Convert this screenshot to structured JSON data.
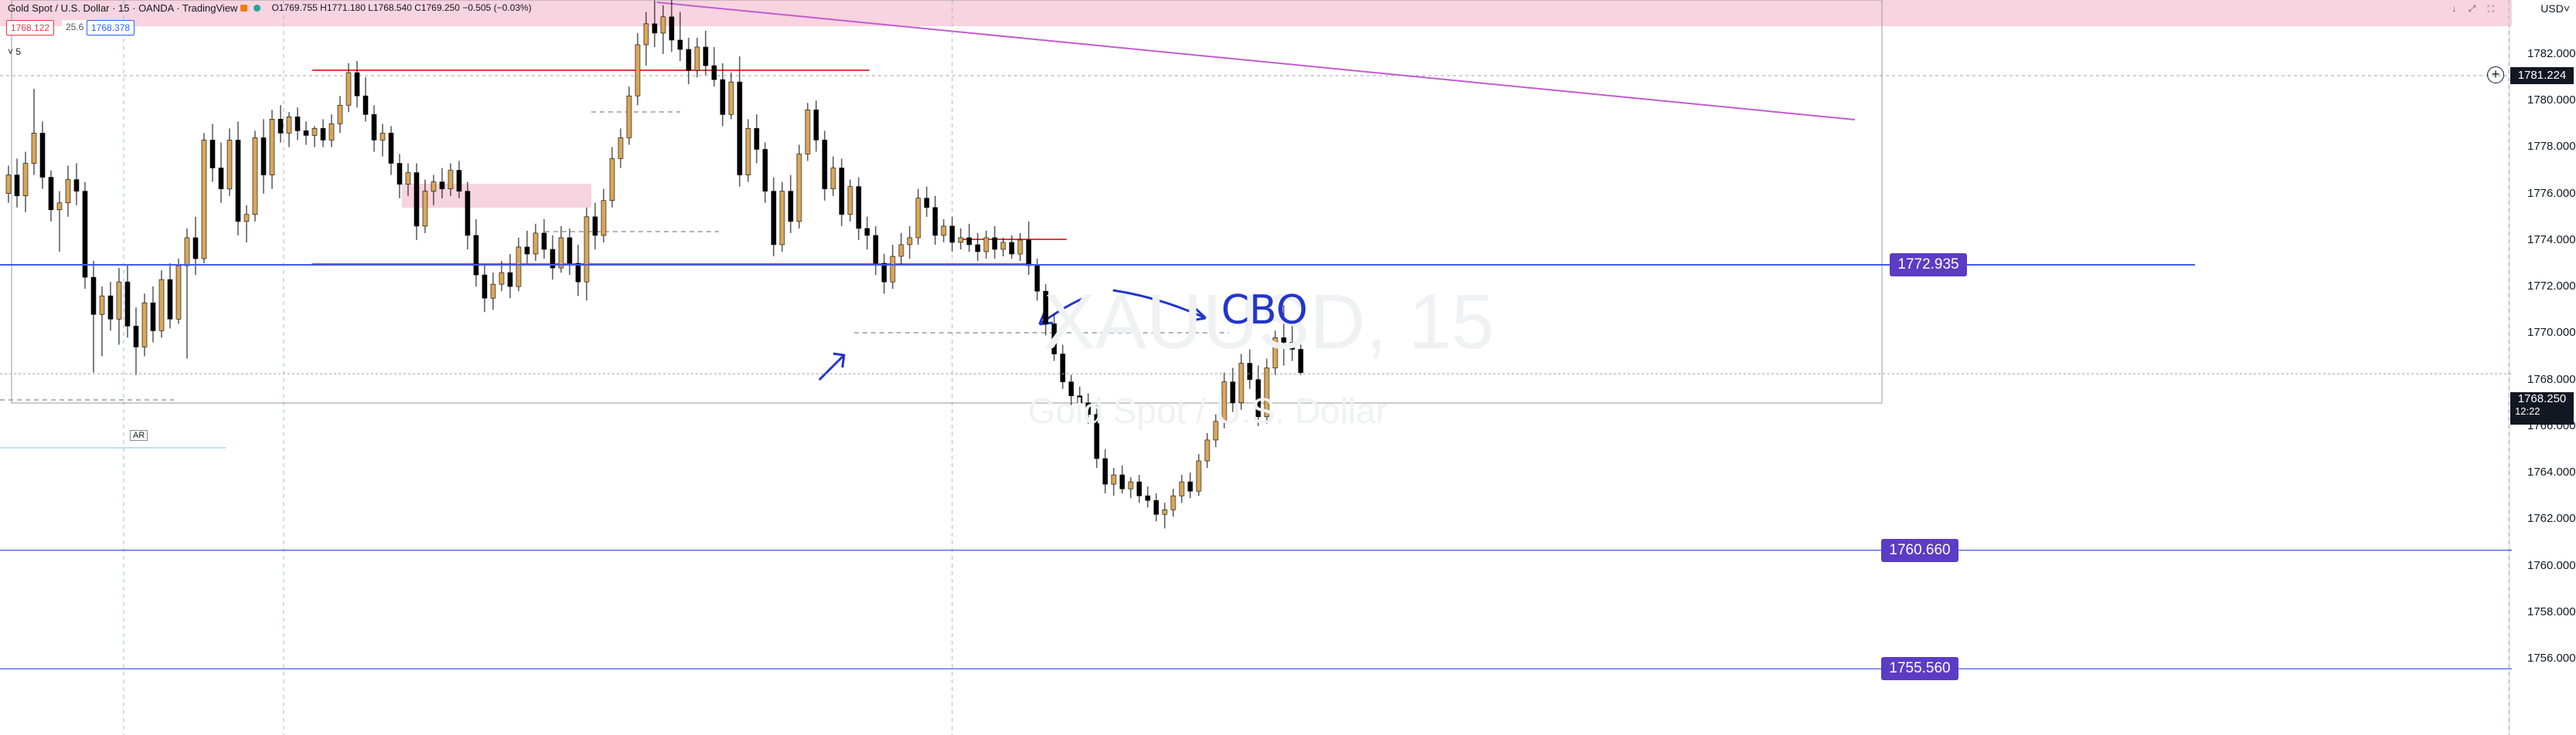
{
  "header": {
    "symbol": "Gold Spot / U.S. Dollar · 15 · OANDA · TradingView",
    "ohlc": "O1769.755 H1771.180 L1768.540 C1769.250 −0.505 (−0.03%)",
    "bid": "1768.122",
    "spread": "25.6",
    "ask": "1768.378",
    "interval_indicator": "˅ 5",
    "currency": "USD˅",
    "window_controls": "↓ ⤢ ⛶"
  },
  "watermark": {
    "symbol": "XAUUSD, 15",
    "description": "Gold Spot / U.S. Dollar"
  },
  "annotations": {
    "cbo": "CBO",
    "ar_label": "AR"
  },
  "colors": {
    "up": "#d9a75a",
    "down": "#000000",
    "level_line": "#3f5be8",
    "level_box": "#5b3cc4",
    "red_line": "#e23b3b",
    "pink_zone": "#f8d3e0",
    "trend_line": "#c45bd0"
  },
  "chart_data": {
    "type": "candlestick",
    "y_axis": {
      "min": 1755.0,
      "max": 1784.5,
      "ticks": [
        "1782.000",
        "1780.000",
        "1778.000",
        "1776.000",
        "1774.000",
        "1772.000",
        "1770.000",
        "1768.000",
        "1766.000",
        "1764.000",
        "1762.000",
        "1760.000",
        "1758.000",
        "1756.000"
      ]
    },
    "current_price": {
      "value": "1768.250",
      "countdown": "12:22",
      "y": 1768.25
    },
    "crosshair_price": {
      "value": "1781.224",
      "y": 1781.224
    },
    "levels": [
      {
        "label": "1772.935",
        "y": 1772.935
      },
      {
        "label": "1760.660",
        "y": 1760.66
      },
      {
        "label": "1755.560",
        "y": 1755.56
      }
    ],
    "candles": [
      [
        1776.0,
        1777.2,
        1775.6,
        1776.8
      ],
      [
        1776.8,
        1777.5,
        1775.4,
        1775.9
      ],
      [
        1775.9,
        1777.8,
        1775.2,
        1777.3
      ],
      [
        1777.3,
        1780.5,
        1776.8,
        1778.6
      ],
      [
        1778.6,
        1779.1,
        1776.2,
        1776.7
      ],
      [
        1776.7,
        1777.0,
        1774.8,
        1775.3
      ],
      [
        1775.3,
        1776.1,
        1773.5,
        1775.6
      ],
      [
        1775.6,
        1777.2,
        1775.0,
        1776.6
      ],
      [
        1776.6,
        1777.3,
        1775.5,
        1776.1
      ],
      [
        1776.1,
        1776.5,
        1771.9,
        1772.4
      ],
      [
        1772.4,
        1773.1,
        1768.3,
        1770.8
      ],
      [
        1770.8,
        1772.0,
        1769.0,
        1771.6
      ],
      [
        1771.6,
        1772.2,
        1770.1,
        1770.6
      ],
      [
        1770.6,
        1772.8,
        1769.5,
        1772.2
      ],
      [
        1772.2,
        1772.9,
        1769.8,
        1770.3
      ],
      [
        1770.3,
        1771.1,
        1768.2,
        1769.4
      ],
      [
        1769.4,
        1771.7,
        1769.0,
        1771.3
      ],
      [
        1771.3,
        1772.0,
        1769.6,
        1770.1
      ],
      [
        1770.1,
        1772.7,
        1769.8,
        1772.3
      ],
      [
        1772.3,
        1773.0,
        1770.2,
        1770.6
      ],
      [
        1770.6,
        1773.2,
        1770.4,
        1772.9
      ],
      [
        1772.9,
        1774.5,
        1768.9,
        1774.1
      ],
      [
        1774.1,
        1775.0,
        1772.5,
        1773.2
      ],
      [
        1773.2,
        1778.6,
        1773.0,
        1778.3
      ],
      [
        1778.3,
        1779.0,
        1776.5,
        1777.1
      ],
      [
        1777.1,
        1778.2,
        1775.6,
        1776.2
      ],
      [
        1776.2,
        1778.8,
        1775.9,
        1778.3
      ],
      [
        1778.3,
        1779.1,
        1774.2,
        1774.8
      ],
      [
        1774.8,
        1775.5,
        1773.9,
        1775.1
      ],
      [
        1775.1,
        1778.7,
        1774.8,
        1778.4
      ],
      [
        1778.4,
        1779.2,
        1776.0,
        1776.8
      ],
      [
        1776.8,
        1779.6,
        1776.2,
        1779.2
      ],
      [
        1779.2,
        1779.8,
        1778.2,
        1778.6
      ],
      [
        1778.6,
        1779.5,
        1778.0,
        1779.3
      ],
      [
        1779.3,
        1779.7,
        1778.3,
        1778.7
      ],
      [
        1778.7,
        1779.1,
        1778.1,
        1778.5
      ],
      [
        1778.5,
        1778.9,
        1778.0,
        1778.8
      ],
      [
        1778.8,
        1779.2,
        1778.0,
        1778.3
      ],
      [
        1778.3,
        1779.4,
        1778.0,
        1779.0
      ],
      [
        1779.0,
        1780.2,
        1778.6,
        1779.8
      ],
      [
        1779.8,
        1781.6,
        1779.5,
        1781.2
      ],
      [
        1781.2,
        1781.7,
        1779.7,
        1780.2
      ],
      [
        1780.2,
        1781.0,
        1779.1,
        1779.4
      ],
      [
        1779.4,
        1779.8,
        1777.8,
        1778.3
      ],
      [
        1778.3,
        1779.0,
        1777.6,
        1778.6
      ],
      [
        1778.6,
        1778.9,
        1776.8,
        1777.3
      ],
      [
        1777.3,
        1777.7,
        1775.8,
        1776.4
      ],
      [
        1776.4,
        1777.3,
        1775.9,
        1776.9
      ],
      [
        1776.9,
        1777.3,
        1774.0,
        1774.6
      ],
      [
        1774.6,
        1776.6,
        1774.3,
        1776.1
      ],
      [
        1776.1,
        1776.8,
        1775.5,
        1776.5
      ],
      [
        1776.5,
        1777.1,
        1775.8,
        1776.2
      ],
      [
        1776.2,
        1777.3,
        1775.9,
        1777.0
      ],
      [
        1777.0,
        1777.4,
        1775.8,
        1776.1
      ],
      [
        1776.1,
        1776.5,
        1773.6,
        1774.2
      ],
      [
        1774.2,
        1774.9,
        1772.0,
        1772.5
      ],
      [
        1772.5,
        1772.9,
        1770.9,
        1771.5
      ],
      [
        1771.5,
        1772.6,
        1771.0,
        1772.1
      ],
      [
        1772.1,
        1773.1,
        1771.8,
        1772.6
      ],
      [
        1772.6,
        1773.4,
        1771.5,
        1772.0
      ],
      [
        1772.0,
        1774.1,
        1771.8,
        1773.7
      ],
      [
        1773.7,
        1774.4,
        1773.0,
        1773.4
      ],
      [
        1773.4,
        1774.7,
        1773.1,
        1774.3
      ],
      [
        1774.3,
        1774.9,
        1773.2,
        1773.6
      ],
      [
        1773.6,
        1774.2,
        1772.3,
        1772.8
      ],
      [
        1772.8,
        1774.6,
        1772.6,
        1774.1
      ],
      [
        1774.1,
        1774.5,
        1772.5,
        1773.0
      ],
      [
        1773.0,
        1773.8,
        1771.6,
        1772.2
      ],
      [
        1772.2,
        1775.4,
        1771.4,
        1775.0
      ],
      [
        1775.0,
        1775.6,
        1773.6,
        1774.2
      ],
      [
        1774.2,
        1776.2,
        1773.9,
        1775.7
      ],
      [
        1775.7,
        1778.0,
        1775.4,
        1777.5
      ],
      [
        1777.5,
        1778.8,
        1777.1,
        1778.4
      ],
      [
        1778.4,
        1780.6,
        1778.1,
        1780.2
      ],
      [
        1780.2,
        1782.9,
        1779.8,
        1782.4
      ],
      [
        1782.4,
        1783.8,
        1781.5,
        1783.3
      ],
      [
        1783.3,
        1784.3,
        1782.3,
        1782.9
      ],
      [
        1782.9,
        1784.1,
        1782.0,
        1783.6
      ],
      [
        1783.6,
        1784.4,
        1782.1,
        1782.6
      ],
      [
        1782.6,
        1783.8,
        1781.7,
        1782.2
      ],
      [
        1782.2,
        1782.7,
        1780.7,
        1781.3
      ],
      [
        1781.3,
        1782.7,
        1781.0,
        1782.3
      ],
      [
        1782.3,
        1783.0,
        1781.1,
        1781.5
      ],
      [
        1781.5,
        1782.3,
        1780.6,
        1780.9
      ],
      [
        1780.9,
        1781.6,
        1778.9,
        1779.4
      ],
      [
        1779.4,
        1781.2,
        1779.2,
        1780.8
      ],
      [
        1780.8,
        1781.9,
        1776.3,
        1776.8
      ],
      [
        1776.8,
        1779.2,
        1776.5,
        1778.8
      ],
      [
        1778.8,
        1779.4,
        1777.3,
        1777.9
      ],
      [
        1777.9,
        1778.2,
        1775.6,
        1776.1
      ],
      [
        1776.1,
        1776.7,
        1773.3,
        1773.8
      ],
      [
        1773.8,
        1776.5,
        1773.5,
        1776.1
      ],
      [
        1776.1,
        1776.8,
        1774.3,
        1774.8
      ],
      [
        1774.8,
        1778.1,
        1774.5,
        1777.7
      ],
      [
        1777.7,
        1779.9,
        1777.4,
        1779.6
      ],
      [
        1779.6,
        1780.0,
        1777.8,
        1778.3
      ],
      [
        1778.3,
        1778.7,
        1775.7,
        1776.2
      ],
      [
        1776.2,
        1777.6,
        1775.9,
        1777.1
      ],
      [
        1777.1,
        1777.5,
        1774.6,
        1775.1
      ],
      [
        1775.1,
        1776.6,
        1774.8,
        1776.3
      ],
      [
        1776.3,
        1776.7,
        1774.0,
        1774.5
      ],
      [
        1774.5,
        1775.0,
        1773.6,
        1774.2
      ],
      [
        1774.2,
        1774.6,
        1772.5,
        1773.0
      ],
      [
        1773.0,
        1773.4,
        1771.7,
        1772.2
      ],
      [
        1772.2,
        1773.8,
        1771.9,
        1773.3
      ],
      [
        1773.3,
        1774.3,
        1772.9,
        1773.8
      ],
      [
        1773.8,
        1774.6,
        1773.2,
        1774.1
      ],
      [
        1774.1,
        1776.2,
        1773.8,
        1775.8
      ],
      [
        1775.8,
        1776.3,
        1775.0,
        1775.4
      ],
      [
        1775.4,
        1775.9,
        1773.8,
        1774.2
      ],
      [
        1774.2,
        1774.9,
        1773.9,
        1774.6
      ],
      [
        1774.6,
        1775.0,
        1773.5,
        1773.9
      ],
      [
        1773.9,
        1774.5,
        1773.6,
        1774.1
      ],
      [
        1774.1,
        1774.7,
        1773.5,
        1773.8
      ],
      [
        1773.8,
        1774.3,
        1773.1,
        1773.5
      ],
      [
        1773.5,
        1774.4,
        1773.2,
        1774.1
      ],
      [
        1774.1,
        1774.6,
        1773.2,
        1773.6
      ],
      [
        1773.6,
        1774.1,
        1773.3,
        1773.9
      ],
      [
        1773.9,
        1774.2,
        1773.2,
        1773.4
      ],
      [
        1773.4,
        1774.3,
        1773.1,
        1774.0
      ],
      [
        1774.0,
        1774.8,
        1772.5,
        1772.9
      ],
      [
        1772.9,
        1773.2,
        1771.4,
        1771.8
      ],
      [
        1771.8,
        1772.1,
        1769.9,
        1770.4
      ],
      [
        1770.4,
        1770.8,
        1768.8,
        1769.1
      ],
      [
        1769.1,
        1769.5,
        1767.6,
        1767.9
      ],
      [
        1767.9,
        1768.2,
        1766.9,
        1767.3
      ],
      [
        1767.3,
        1767.7,
        1766.2,
        1767.0
      ],
      [
        1767.0,
        1767.4,
        1766.1,
        1766.5
      ],
      [
        1766.5,
        1766.9,
        1764.2,
        1764.6
      ],
      [
        1764.6,
        1765.0,
        1763.1,
        1763.5
      ],
      [
        1763.5,
        1764.2,
        1763.0,
        1763.9
      ],
      [
        1763.9,
        1764.3,
        1763.1,
        1763.3
      ],
      [
        1763.3,
        1763.8,
        1762.9,
        1763.6
      ],
      [
        1763.6,
        1763.9,
        1762.7,
        1763.0
      ],
      [
        1763.0,
        1763.4,
        1762.5,
        1762.8
      ],
      [
        1762.8,
        1763.1,
        1761.9,
        1762.2
      ],
      [
        1762.2,
        1762.7,
        1761.6,
        1762.4
      ],
      [
        1762.4,
        1763.3,
        1762.1,
        1763.0
      ],
      [
        1763.0,
        1763.9,
        1762.7,
        1763.6
      ],
      [
        1763.6,
        1764.0,
        1762.9,
        1763.2
      ],
      [
        1763.2,
        1764.8,
        1763.0,
        1764.5
      ],
      [
        1764.5,
        1765.7,
        1764.2,
        1765.4
      ],
      [
        1765.4,
        1766.5,
        1765.1,
        1766.2
      ],
      [
        1766.2,
        1768.3,
        1765.9,
        1767.9
      ],
      [
        1767.9,
        1768.5,
        1766.6,
        1767.0
      ],
      [
        1767.0,
        1769.1,
        1766.7,
        1768.7
      ],
      [
        1768.7,
        1769.3,
        1767.6,
        1768.0
      ],
      [
        1768.0,
        1768.6,
        1766.0,
        1766.4
      ],
      [
        1766.4,
        1768.9,
        1766.1,
        1768.5
      ],
      [
        1768.5,
        1770.1,
        1768.2,
        1769.8
      ],
      [
        1769.8,
        1771.2,
        1768.6,
        1769.6
      ],
      [
        1769.6,
        1770.3,
        1768.8,
        1769.3
      ],
      [
        1769.3,
        1769.8,
        1768.2,
        1768.3
      ]
    ]
  }
}
